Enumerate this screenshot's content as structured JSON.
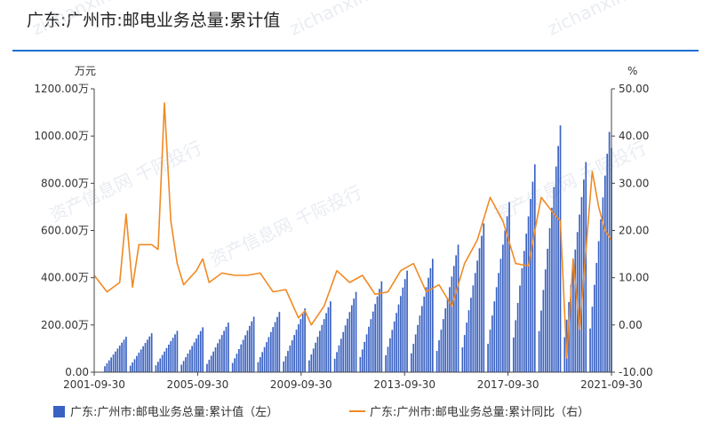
{
  "title": "广东:广州市:邮电业务总量:累计值",
  "colors": {
    "bar": "#3a62c2",
    "line": "#f08a24",
    "accent": "#1f6fd0"
  },
  "chart_data": {
    "type": "bar+line",
    "title": "广东:广州市:邮电业务总量:累计值",
    "left_unit": "万元",
    "right_unit": "%",
    "y_left": {
      "min": 0,
      "max": 1200,
      "ticks": [
        "0.00",
        "200.00万",
        "400.00万",
        "600.00万",
        "800.00万",
        "1000.00万",
        "1200.00万"
      ]
    },
    "y_right": {
      "min": -10,
      "max": 50,
      "ticks": [
        "-10.00",
        "0.00",
        "10.00",
        "20.00",
        "30.00",
        "40.00",
        "50.00"
      ]
    },
    "x_labels": [
      "2001-09-30",
      "2005-09-30",
      "2009-09-30",
      "2013-09-30",
      "2017-09-30",
      "2021-09-30"
    ],
    "x_range": [
      "2001-09",
      "2021-12"
    ],
    "series": [
      {
        "name": "广东:广州市:邮电业务总量:累计值（左）",
        "type": "bar",
        "year_end_values": [
          [
            "2002",
            150
          ],
          [
            "2003",
            165
          ],
          [
            "2004",
            175
          ],
          [
            "2005",
            190
          ],
          [
            "2006",
            210
          ],
          [
            "2007",
            235
          ],
          [
            "2008",
            255
          ],
          [
            "2009",
            270
          ],
          [
            "2010",
            300
          ],
          [
            "2011",
            340
          ],
          [
            "2012",
            385
          ],
          [
            "2013",
            430
          ],
          [
            "2014",
            480
          ],
          [
            "2015",
            540
          ],
          [
            "2016",
            630
          ],
          [
            "2017",
            720
          ],
          [
            "2018",
            880
          ],
          [
            "2019",
            1045
          ],
          [
            "2020",
            890
          ],
          [
            "2021",
            1110
          ]
        ],
        "last_value": [
          "2021-12",
          950
        ]
      },
      {
        "name": "广东:广州市:邮电业务总量:累计同比（右）",
        "type": "line",
        "points": [
          [
            "2001-09",
            10.5
          ],
          [
            "2002-03",
            7.0
          ],
          [
            "2002-09",
            9.0
          ],
          [
            "2002-12",
            23.5
          ],
          [
            "2003-03",
            8.0
          ],
          [
            "2003-06",
            17.0
          ],
          [
            "2003-12",
            17.0
          ],
          [
            "2004-03",
            16.0
          ],
          [
            "2004-06",
            47.0
          ],
          [
            "2004-09",
            22.0
          ],
          [
            "2004-12",
            13.0
          ],
          [
            "2005-03",
            8.5
          ],
          [
            "2005-09",
            11.5
          ],
          [
            "2005-12",
            14.0
          ],
          [
            "2006-03",
            9.0
          ],
          [
            "2006-09",
            11.0
          ],
          [
            "2007-03",
            10.5
          ],
          [
            "2007-09",
            10.5
          ],
          [
            "2008-03",
            11.0
          ],
          [
            "2008-09",
            7.0
          ],
          [
            "2009-03",
            7.5
          ],
          [
            "2009-09",
            1.5
          ],
          [
            "2009-12",
            3.0
          ],
          [
            "2010-03",
            0.0
          ],
          [
            "2010-09",
            4.0
          ],
          [
            "2011-03",
            11.5
          ],
          [
            "2011-09",
            9.0
          ],
          [
            "2012-03",
            10.5
          ],
          [
            "2012-09",
            6.5
          ],
          [
            "2013-03",
            7.0
          ],
          [
            "2013-09",
            11.5
          ],
          [
            "2014-03",
            13.0
          ],
          [
            "2014-09",
            7.0
          ],
          [
            "2015-03",
            8.5
          ],
          [
            "2015-09",
            4.0
          ],
          [
            "2016-03",
            13.0
          ],
          [
            "2016-09",
            18.0
          ],
          [
            "2017-03",
            27.0
          ],
          [
            "2017-09",
            22.0
          ],
          [
            "2018-03",
            13.0
          ],
          [
            "2018-09",
            12.5
          ],
          [
            "2018-12",
            20.0
          ],
          [
            "2019-03",
            27.0
          ],
          [
            "2019-09",
            23.5
          ],
          [
            "2019-12",
            22.0
          ],
          [
            "2020-03",
            -7.0
          ],
          [
            "2020-06",
            14.0
          ],
          [
            "2020-09",
            -1.0
          ],
          [
            "2021-03",
            32.5
          ],
          [
            "2021-06",
            25.0
          ],
          [
            "2021-09",
            20.0
          ],
          [
            "2021-12",
            18.0
          ]
        ]
      }
    ],
    "legend": {
      "position": "bottom-left"
    },
    "grid": false
  },
  "legend": {
    "bar_label": "广东:广州市:邮电业务总量:累计值（左）",
    "line_label": "广东:广州市:邮电业务总量:累计同比（右）"
  },
  "watermarks": [
    "资产信息网 千际投行",
    "zichanxinxi.com"
  ]
}
